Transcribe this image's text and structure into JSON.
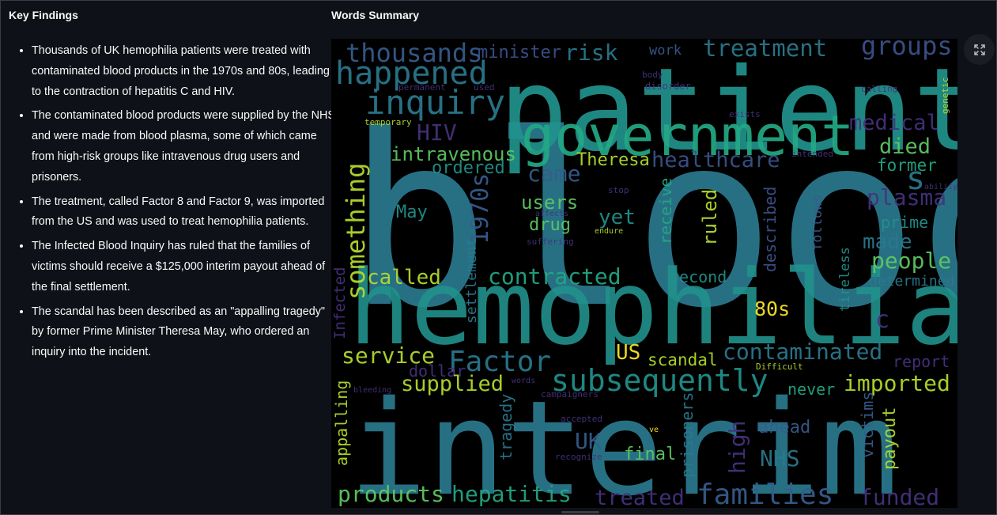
{
  "key_findings": {
    "title": "Key Findings",
    "items": [
      "Thousands of UK hemophilia patients were treated with contaminated blood products in the 1970s and 80s, leading to the contraction of hepatitis C and HIV.",
      "The contaminated blood products were supplied by the NHS and were made from blood plasma, some of which came from high-risk groups like intravenous drug users and prisoners.",
      "The treatment, called Factor 8 and Factor 9, was imported from the US and was used to treat hemophilia patients.",
      "The Infected Blood Inquiry has ruled that the families of victims should receive a $125,000 interim payout ahead of the final settlement.",
      "The scandal has been described as an \"appalling tragedy\" by former Prime Minister Theresa May, who ordered an inquiry into the incident."
    ]
  },
  "words_summary": {
    "title": "Words Summary",
    "palette": {
      "purple": "#46327e",
      "indigo": "#3b528b",
      "blue": "#365c8d",
      "teal": "#2a788e",
      "cyan": "#21918c",
      "green": "#22a884",
      "lime": "#5ec962",
      "yellow": "#b5de2b",
      "bright": "#fde725",
      "dark": "#440154"
    },
    "words": [
      {
        "text": "blood",
        "color": "#2a788e"
      },
      {
        "text": "patients",
        "color": "#21918c"
      },
      {
        "text": "hemophilia",
        "color": "#21918c"
      },
      {
        "text": "interim",
        "color": "#2a788e"
      },
      {
        "text": "government",
        "color": "#22a884"
      },
      {
        "text": "inquiry",
        "color": "#2a788e"
      },
      {
        "text": "happened",
        "color": "#2a788e"
      },
      {
        "text": "thousands",
        "color": "#365c8d"
      },
      {
        "text": "minister",
        "color": "#3b528b"
      },
      {
        "text": "risk",
        "color": "#2a788e"
      },
      {
        "text": "work",
        "color": "#365c8d"
      },
      {
        "text": "treatment",
        "color": "#2a788e"
      },
      {
        "text": "groups",
        "color": "#3b528b"
      },
      {
        "text": "something",
        "color": "#b5de2b"
      },
      {
        "text": "HIV",
        "color": "#46327e"
      },
      {
        "text": "medical",
        "color": "#46327e"
      },
      {
        "text": "died",
        "color": "#5ec962"
      },
      {
        "text": "s",
        "color": "#2a788e"
      },
      {
        "text": "former",
        "color": "#22a884"
      },
      {
        "text": "intravenous",
        "color": "#5ec962"
      },
      {
        "text": "ordered",
        "color": "#21918c"
      },
      {
        "text": "came",
        "color": "#365c8d"
      },
      {
        "text": "Theresa",
        "color": "#b5de2b"
      },
      {
        "text": "healthcare",
        "color": "#3b528b"
      },
      {
        "text": "1970s",
        "color": "#365c8d"
      },
      {
        "text": "plasma",
        "color": "#46327e"
      },
      {
        "text": "May",
        "color": "#21918c"
      },
      {
        "text": "users",
        "color": "#5ec962"
      },
      {
        "text": "yet",
        "color": "#21918c"
      },
      {
        "text": "drug",
        "color": "#5ec962"
      },
      {
        "text": "receive",
        "color": "#22a884"
      },
      {
        "text": "ruled",
        "color": "#b5de2b"
      },
      {
        "text": "described",
        "color": "#3b528b"
      },
      {
        "text": "follows",
        "color": "#365c8d"
      },
      {
        "text": "prime",
        "color": "#21918c"
      },
      {
        "text": "made",
        "color": "#2a788e"
      },
      {
        "text": "people",
        "color": "#5ec962"
      },
      {
        "text": "settlement",
        "color": "#2a788e"
      },
      {
        "text": "called",
        "color": "#b5de2b"
      },
      {
        "text": "contracted",
        "color": "#22a884"
      },
      {
        "text": "second",
        "color": "#21918c"
      },
      {
        "text": "determined",
        "color": "#2a788e"
      },
      {
        "text": "80s",
        "color": "#fde725"
      },
      {
        "text": "c",
        "color": "#46327e"
      },
      {
        "text": "Infected",
        "color": "#46327e"
      },
      {
        "text": "tireless",
        "color": "#21918c"
      },
      {
        "text": "service",
        "color": "#b5de2b"
      },
      {
        "text": "Factor",
        "color": "#2a788e"
      },
      {
        "text": "US",
        "color": "#fde725"
      },
      {
        "text": "scandal",
        "color": "#b5de2b"
      },
      {
        "text": "contaminated",
        "color": "#2a788e"
      },
      {
        "text": "report",
        "color": "#46327e"
      },
      {
        "text": "dollar",
        "color": "#46327e"
      },
      {
        "text": "supplied",
        "color": "#b5de2b"
      },
      {
        "text": "subsequently",
        "color": "#21918c"
      },
      {
        "text": "imported",
        "color": "#b5de2b"
      },
      {
        "text": "never",
        "color": "#22a884"
      },
      {
        "text": "appalling",
        "color": "#b5de2b"
      },
      {
        "text": "tragedy",
        "color": "#2a788e"
      },
      {
        "text": "UK",
        "color": "#365c8d"
      },
      {
        "text": "high",
        "color": "#46327e"
      },
      {
        "text": "NHS",
        "color": "#2a788e"
      },
      {
        "text": "ahead",
        "color": "#365c8d"
      },
      {
        "text": "prisoners",
        "color": "#2a788e"
      },
      {
        "text": "victims",
        "color": "#365c8d"
      },
      {
        "text": "payout",
        "color": "#b5de2b"
      },
      {
        "text": "final",
        "color": "#5ec962"
      },
      {
        "text": "products",
        "color": "#5ec962"
      },
      {
        "text": "hepatitis",
        "color": "#22a884"
      },
      {
        "text": "treated",
        "color": "#46327e"
      },
      {
        "text": "families",
        "color": "#365c8d"
      },
      {
        "text": "funded",
        "color": "#46327e"
      },
      {
        "text": "permanent",
        "color": "#46327e"
      },
      {
        "text": "used",
        "color": "#46327e"
      },
      {
        "text": "body",
        "color": "#46327e"
      },
      {
        "text": "disorder",
        "color": "#46327e"
      },
      {
        "text": "calling",
        "color": "#46327e"
      },
      {
        "text": "genetic",
        "color": "#b5de2b"
      },
      {
        "text": "temporary",
        "color": "#b5de2b"
      },
      {
        "text": "exists",
        "color": "#46327e"
      },
      {
        "text": "intended",
        "color": "#46327e"
      },
      {
        "text": "ability",
        "color": "#46327e"
      },
      {
        "text": "stop",
        "color": "#46327e"
      },
      {
        "text": "affects",
        "color": "#46327e"
      },
      {
        "text": "endure",
        "color": "#b5de2b"
      },
      {
        "text": "suffering",
        "color": "#46327e"
      },
      {
        "text": "Difficult",
        "color": "#b5de2b"
      },
      {
        "text": "bleeding",
        "color": "#46327e"
      },
      {
        "text": "words",
        "color": "#46327e"
      },
      {
        "text": "campaigners",
        "color": "#46327e"
      },
      {
        "text": "accepted",
        "color": "#46327e"
      },
      {
        "text": "ve",
        "color": "#fde725"
      },
      {
        "text": "recognize",
        "color": "#46327e"
      }
    ]
  },
  "controls": {
    "expand_icon": "expand-icon"
  }
}
